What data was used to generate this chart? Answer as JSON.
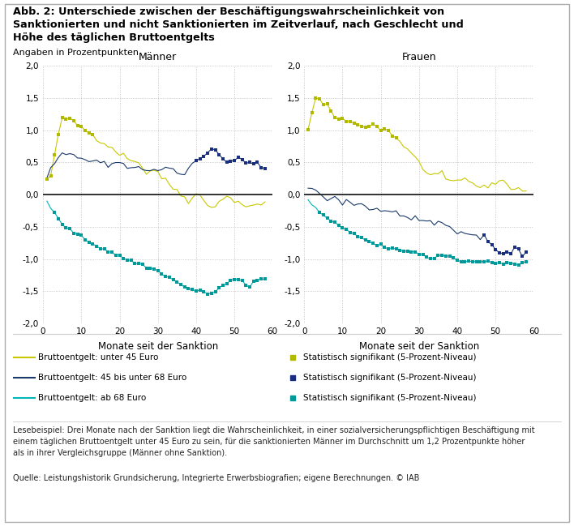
{
  "title_line1": "Abb. 2: Unterschiede zwischen der Beschäftigungswahrscheinlichkeit von",
  "title_line2": "Sanktionierten und nicht Sanktionierten im Zeitverlauf, nach Geschlecht und",
  "title_line3": "Höhe des täglichen Bruttoentgelts",
  "subtitle": "Angaben in Prozentpunkten",
  "xlabel": "Monate seit der Sanktion",
  "panel_titles": [
    "Männer",
    "Frauen"
  ],
  "ylim": [
    -2.0,
    2.0
  ],
  "yticks": [
    -2.0,
    -1.5,
    -1.0,
    -0.5,
    0,
    0.5,
    1.0,
    1.5,
    2.0
  ],
  "xticks": [
    0,
    10,
    20,
    30,
    40,
    50,
    60
  ],
  "color_yellow": "#c8c800",
  "color_yellow_sig": "#b0b800",
  "color_blue": "#1a3a6b",
  "color_blue_sig": "#1a2e80",
  "color_teal": "#00b5b8",
  "color_teal_sig": "#009898",
  "legend_labels": [
    "Bruttoentgelt: unter 45 Euro",
    "Statistisch signifikant (5-Prozent-Niveau)",
    "Bruttoentgelt: 45 bis unter 68 Euro",
    "Statistisch signifikant (5-Prozent-Niveau)",
    "Bruttoentgelt: ab 68 Euro",
    "Statistisch signifikant (5-Prozent-Niveau)"
  ],
  "footer_text": "Lesebeispiel: Drei Monate nach der Sanktion liegt die Wahrscheinlichkeit, in einer sozialversicherungspflichtigen Beschäftigung mit\neinem täglichen Bruttoentgelt unter 45 Euro zu sein, für die sanktionierten Männer im Durchschnitt um 1,2 Prozentpunkte höher\nals in ihrer Vergleichsgruppe (Männer ohne Sanktion).",
  "source_text": "Quelle: Leistungshistorik Grundsicherung, Integrierte Erwerbsbiografien; eigene Berechnungen. © IAB"
}
